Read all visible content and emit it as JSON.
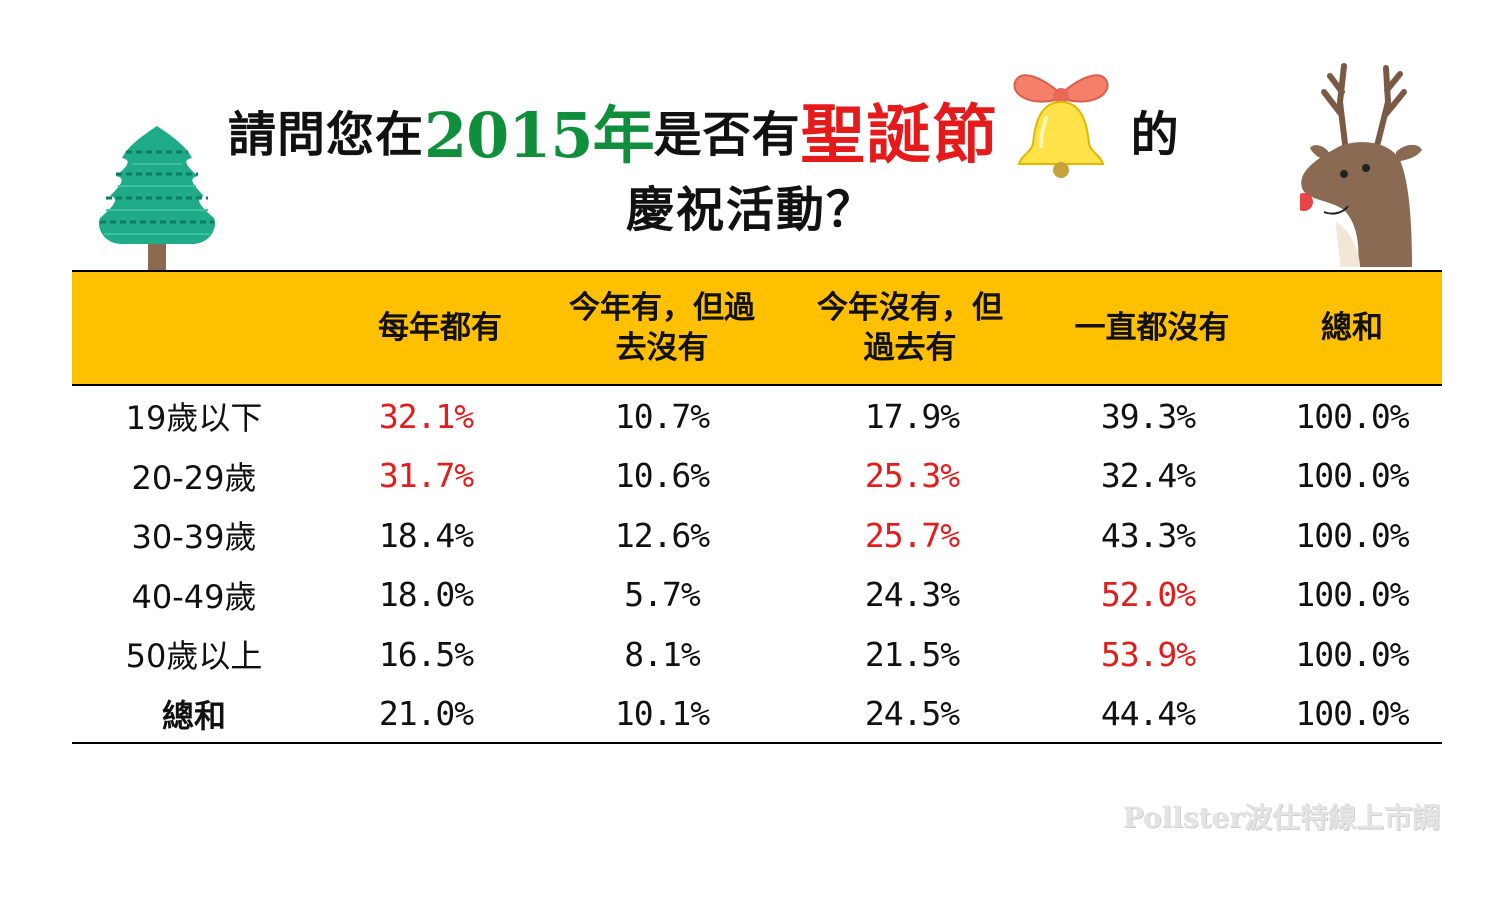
{
  "title": {
    "part1": "請問您在",
    "year": "2015年",
    "part2": "是否有",
    "highlight": "聖誕節",
    "part3": "的",
    "line2": "慶祝活動？"
  },
  "colors": {
    "header_bg": "#ffc000",
    "highlight_red": "#e31c1c",
    "year_green": "#0f8f3c"
  },
  "chart_data": {
    "type": "table",
    "columns": [
      "",
      "每年都有",
      "今年有，但過\n去沒有",
      "今年沒有，但\n過去有",
      "一直都沒有",
      "總和"
    ],
    "rows": [
      {
        "label": "19歲以下",
        "values": [
          "32.1%",
          "10.7%",
          "17.9%",
          "39.3%",
          "100.0%"
        ],
        "highlight": [
          true,
          false,
          false,
          false,
          false
        ]
      },
      {
        "label": "20-29歲",
        "values": [
          "31.7%",
          "10.6%",
          "25.3%",
          "32.4%",
          "100.0%"
        ],
        "highlight": [
          true,
          false,
          true,
          false,
          false
        ]
      },
      {
        "label": "30-39歲",
        "values": [
          "18.4%",
          "12.6%",
          "25.7%",
          "43.3%",
          "100.0%"
        ],
        "highlight": [
          false,
          false,
          true,
          false,
          false
        ]
      },
      {
        "label": "40-49歲",
        "values": [
          "18.0%",
          "5.7%",
          "24.3%",
          "52.0%",
          "100.0%"
        ],
        "highlight": [
          false,
          false,
          false,
          true,
          false
        ]
      },
      {
        "label": "50歲以上",
        "values": [
          "16.5%",
          "8.1%",
          "21.5%",
          "53.9%",
          "100.0%"
        ],
        "highlight": [
          false,
          false,
          false,
          true,
          false
        ]
      },
      {
        "label": "總和",
        "values": [
          "21.0%",
          "10.1%",
          "24.5%",
          "44.4%",
          "100.0%"
        ],
        "highlight": [
          false,
          false,
          false,
          false,
          false
        ]
      }
    ]
  },
  "credit": "Pollster波仕特線上市調",
  "icons": [
    "christmas-tree-icon",
    "bell-icon",
    "reindeer-icon"
  ]
}
